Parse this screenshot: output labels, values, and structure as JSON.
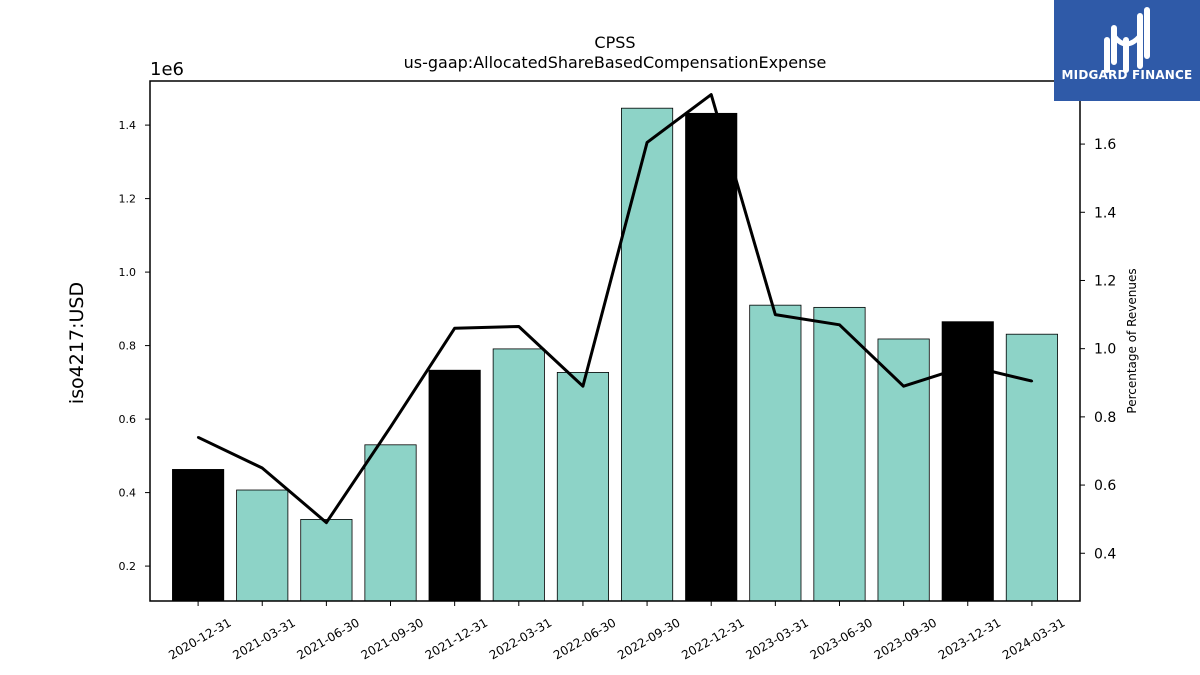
{
  "chart_data": {
    "type": "bar",
    "title": "CPSS",
    "subtitle": "us-gaap:AllocatedShareBasedCompensationExpense",
    "ylabel": "iso4217:USD",
    "y2label": "Percentage of Revenues",
    "y_offset_label": "1e6",
    "categories": [
      "2020-12-31",
      "2021-03-31",
      "2021-06-30",
      "2021-09-30",
      "2021-12-31",
      "2022-03-31",
      "2022-06-30",
      "2022-09-30",
      "2022-12-31",
      "2023-03-31",
      "2023-06-30",
      "2023-09-30",
      "2023-12-31",
      "2024-03-31"
    ],
    "values": [
      463000,
      407000,
      327000,
      530000,
      733000,
      791000,
      727000,
      1446000,
      1432000,
      910000,
      904000,
      818000,
      865000,
      831000
    ],
    "bar_colors": [
      "#000000",
      "#8dd3c7",
      "#8dd3c7",
      "#8dd3c7",
      "#000000",
      "#8dd3c7",
      "#8dd3c7",
      "#8dd3c7",
      "#000000",
      "#8dd3c7",
      "#8dd3c7",
      "#8dd3c7",
      "#000000",
      "#8dd3c7"
    ],
    "line_values": [
      0.74,
      0.65,
      0.49,
      0.77,
      1.06,
      1.065,
      0.89,
      1.605,
      1.745,
      1.1,
      1.07,
      0.89,
      0.95,
      0.905
    ],
    "ylim": [
      0.105,
      1.52
    ],
    "y_scale": 1000000,
    "yticks": [
      "0.2",
      "0.4",
      "0.6",
      "0.8",
      "1.0",
      "1.2",
      "1.4"
    ],
    "y2lim": [
      0.26,
      1.785
    ],
    "y2ticks": [
      "0.4",
      "0.6",
      "0.8",
      "1.0",
      "1.2",
      "1.4",
      "1.6"
    ],
    "line_color": "#000000",
    "grid": false,
    "legend": "none"
  },
  "logo": {
    "text": "MIDGARD FINANCE",
    "color": "#2f5aa8"
  }
}
